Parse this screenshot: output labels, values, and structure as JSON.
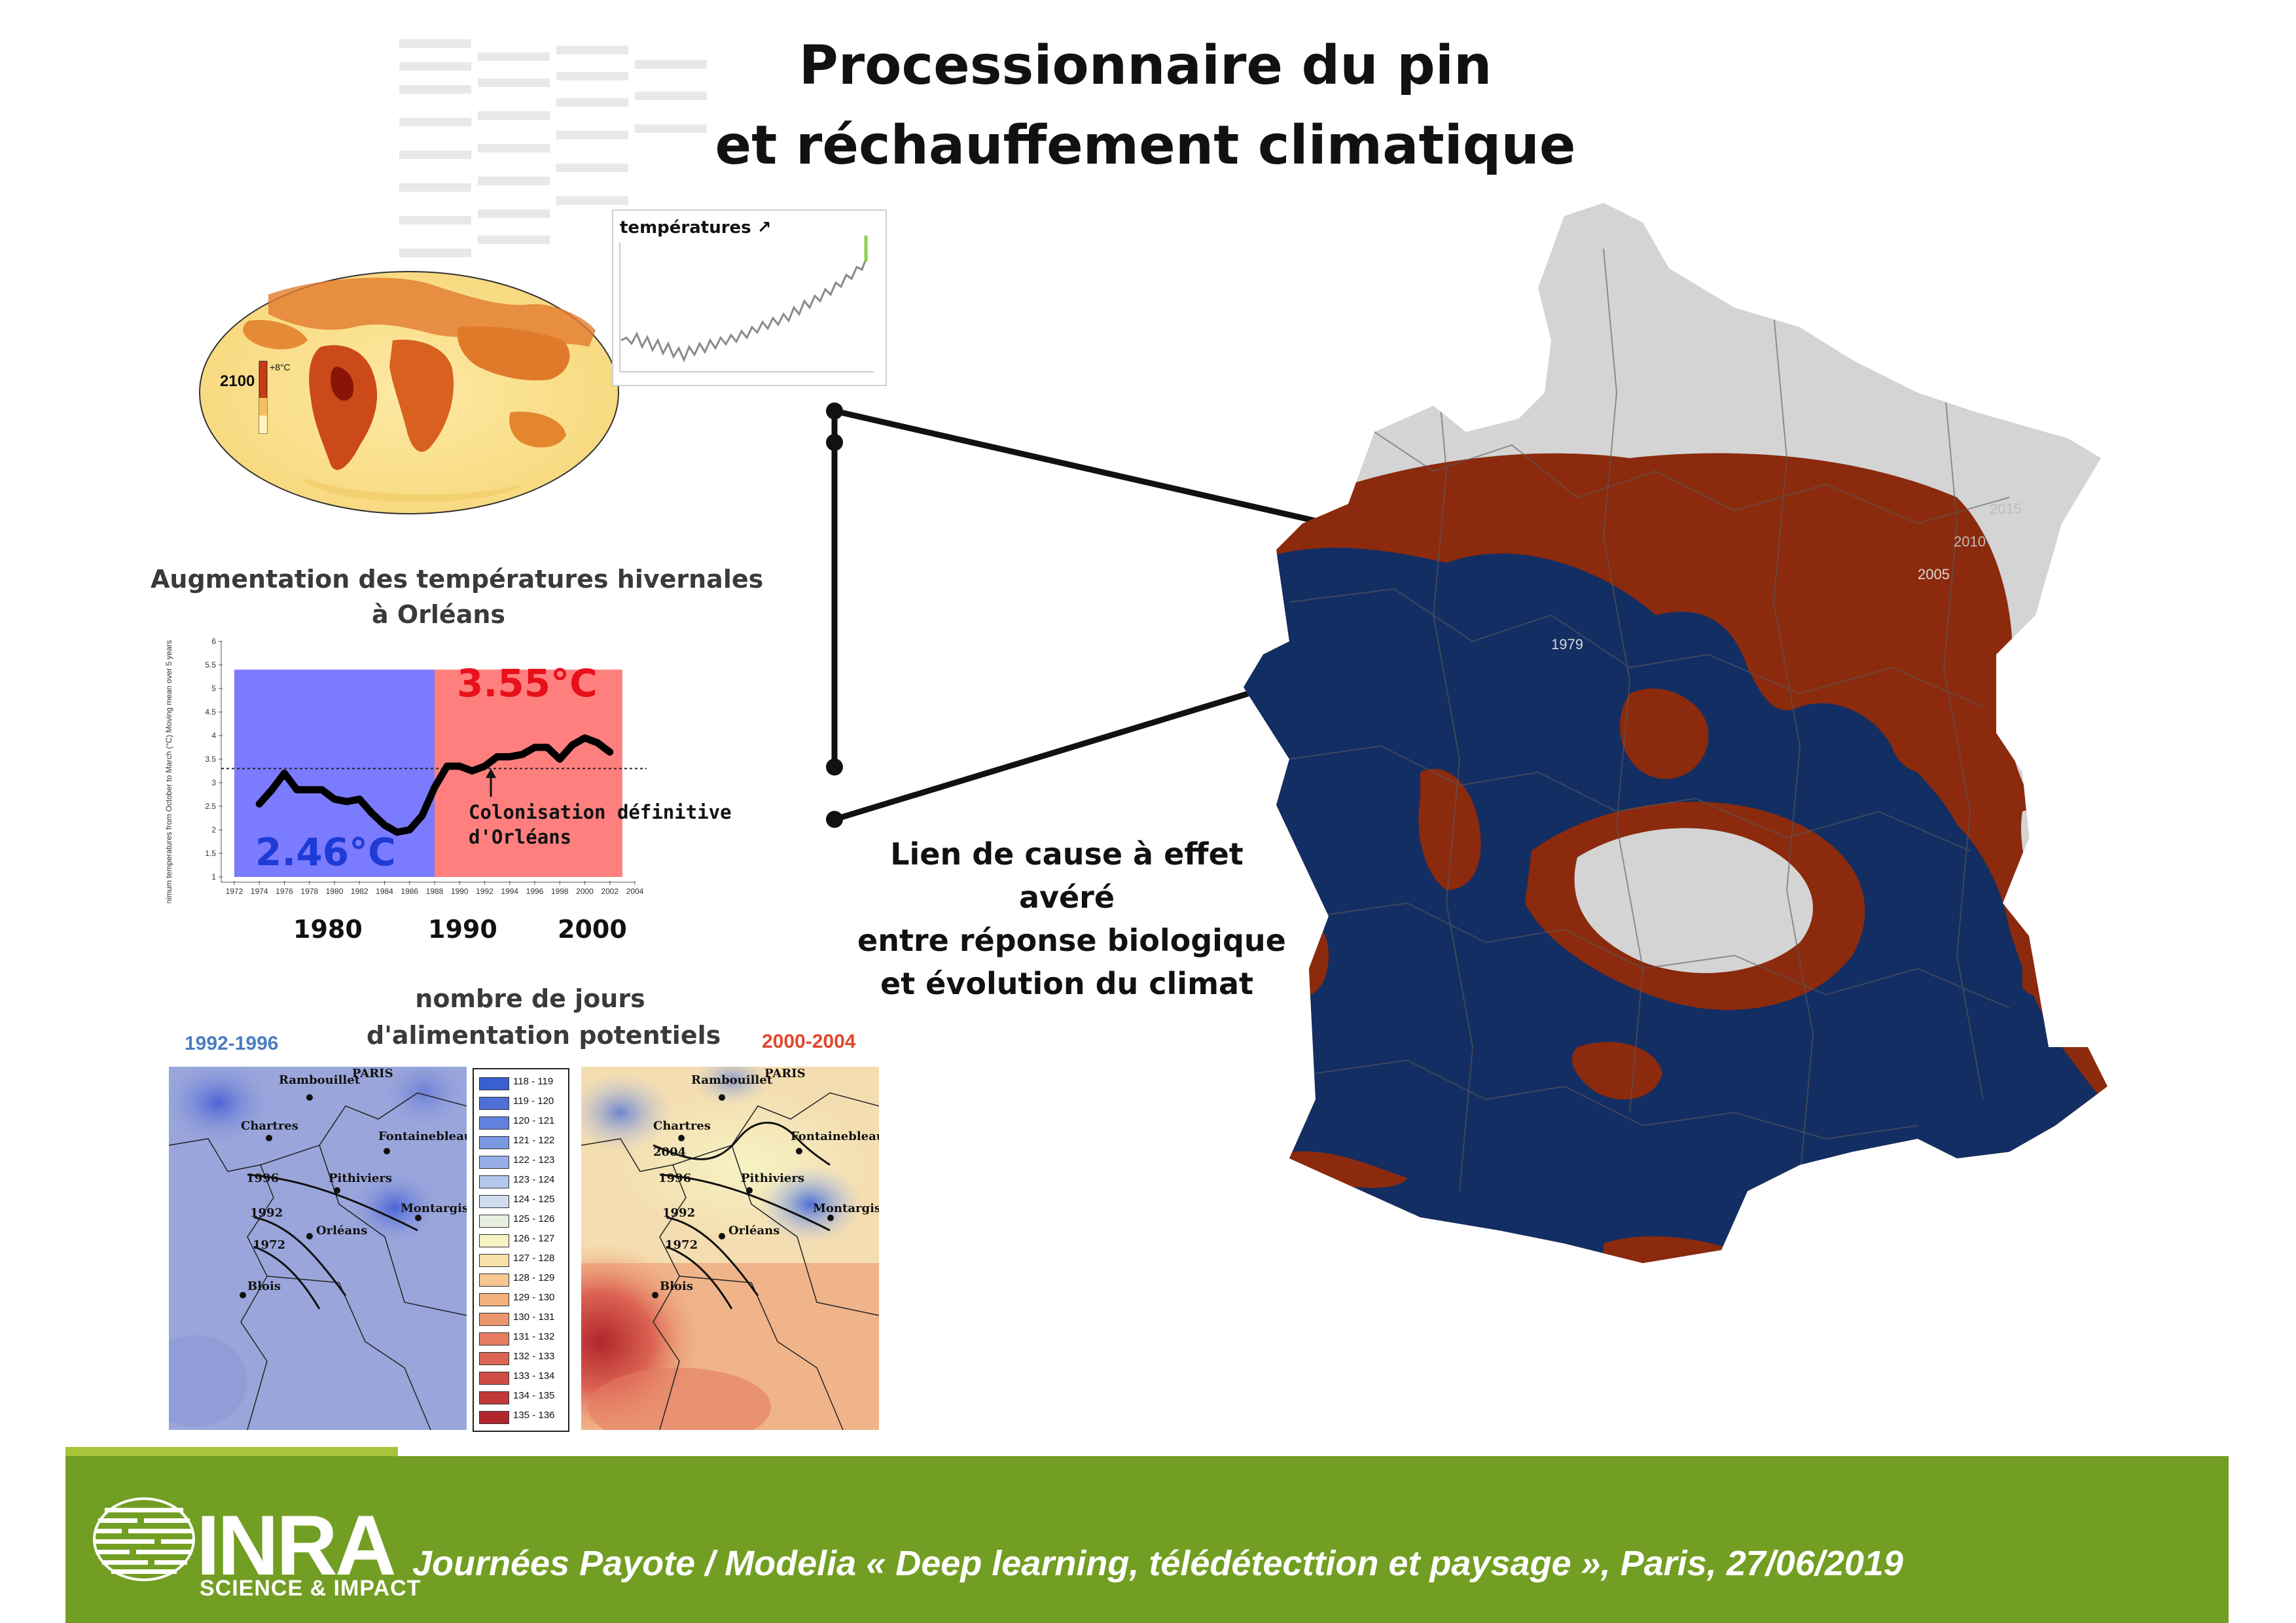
{
  "title": {
    "line1": "Processionnaire du pin",
    "line2": "et réchauffement climatique"
  },
  "globe": {
    "year": "2100",
    "scale_top": "+8°C"
  },
  "temp_inset": {
    "label": "températures ↗"
  },
  "orleans_chart": {
    "title_line1": "Augmentation des températures hivernales",
    "title_line2": "à Orléans",
    "ylabel": "Minimum temperatures from October to March (°C) Moving mean over 5 years",
    "period1_value": "2.46°C",
    "period2_value": "3.55°C",
    "annotation_line1": "Colonisation définitive",
    "annotation_line2": "d'Orléans",
    "decade_labels": [
      "1980",
      "1990",
      "2000"
    ],
    "colors": {
      "period1": "#7b7bff",
      "period2": "#ff7f7f",
      "value1": "#1f3bd6",
      "value2": "#e8101a"
    }
  },
  "chart_data": {
    "type": "line",
    "title": "Augmentation des températures hivernales à Orléans",
    "xlabel": "",
    "ylabel": "Minimum temperatures from October to March (°C) Moving mean over 5 years",
    "xlim": [
      1972,
      2004
    ],
    "ylim": [
      1,
      6
    ],
    "x_ticks": [
      1972,
      1974,
      1976,
      1978,
      1980,
      1982,
      1984,
      1986,
      1988,
      1990,
      1992,
      1994,
      1996,
      1998,
      2000,
      2002,
      2004
    ],
    "y_ticks": [
      1,
      1.5,
      2,
      2.5,
      3,
      3.5,
      4,
      4.5,
      5,
      5.5,
      6
    ],
    "reference_line": 3.3,
    "periods": [
      {
        "from": 1972,
        "to": 1988,
        "mean": "2.46°C"
      },
      {
        "from": 1988,
        "to": 2003,
        "mean": "3.55°C"
      }
    ],
    "series": [
      {
        "x": [
          1974,
          1975,
          1976,
          1977,
          1978,
          1979,
          1980,
          1981,
          1982,
          1983,
          1984,
          1985,
          1986,
          1987,
          1988,
          1989,
          1990,
          1991,
          1992,
          1993,
          1994,
          1995,
          1996,
          1997,
          1998,
          1999,
          2000,
          2001,
          2002
        ],
        "values": [
          2.55,
          2.85,
          3.2,
          2.85,
          2.85,
          2.85,
          2.65,
          2.6,
          2.65,
          2.35,
          2.1,
          1.95,
          2.0,
          2.3,
          2.9,
          3.35,
          3.35,
          3.25,
          3.35,
          3.55,
          3.55,
          3.6,
          3.75,
          3.75,
          3.5,
          3.8,
          3.95,
          3.85,
          3.65
        ]
      }
    ]
  },
  "maps": {
    "title_line1": "nombre de jours",
    "title_line2": "d'alimentation potentiels",
    "left_period": "1992-1996",
    "right_period": "2000-2004",
    "left_period_color": "#4a7ec0",
    "right_period_color": "#e0492d",
    "towns": [
      "Rambouillet",
      "PARIS",
      "Chartres",
      "Fontainebleau",
      "Pithiviers",
      "Montargis",
      "Orléans",
      "Blois"
    ],
    "front_years_left": [
      "1996",
      "1992",
      "1972"
    ],
    "front_years_right": [
      "2004",
      "1996",
      "1992",
      "1972"
    ],
    "legend": [
      {
        "range": "118 - 119",
        "color": "#3a5fd0"
      },
      {
        "range": "119 - 120",
        "color": "#4d6fd6"
      },
      {
        "range": "120 - 121",
        "color": "#6182dc"
      },
      {
        "range": "121 - 122",
        "color": "#7b97e2"
      },
      {
        "range": "122 - 123",
        "color": "#97afe7"
      },
      {
        "range": "123 - 124",
        "color": "#b3c6ec"
      },
      {
        "range": "124 - 125",
        "color": "#cfdcee"
      },
      {
        "range": "125 - 126",
        "color": "#e8eee0"
      },
      {
        "range": "126 - 127",
        "color": "#f6f2c4"
      },
      {
        "range": "127 - 128",
        "color": "#f8e0a8"
      },
      {
        "range": "128 - 129",
        "color": "#f6c890"
      },
      {
        "range": "129 - 130",
        "color": "#f2b07c"
      },
      {
        "range": "130 - 131",
        "color": "#ec9670"
      },
      {
        "range": "131 - 132",
        "color": "#e57c62"
      },
      {
        "range": "132 - 133",
        "color": "#dc6454"
      },
      {
        "range": "133 - 134",
        "color": "#d04c46"
      },
      {
        "range": "134 - 135",
        "color": "#c23838"
      },
      {
        "range": "135 - 136",
        "color": "#b1262c"
      }
    ]
  },
  "france_map": {
    "year_labels": [
      "2015",
      "2010",
      "2005",
      "1979"
    ],
    "colors": {
      "background": "#d4d4d4",
      "present": "#8c2a0d",
      "suitable": "#132e63"
    }
  },
  "caption": {
    "line1": "Lien de cause à effet",
    "line2": "avéré",
    "line3": "entre réponse biologique",
    "line4": "et évolution du climat"
  },
  "footer": {
    "logo_word": "INRA",
    "logo_sub": "SCIENCE & IMPACT",
    "text": "Journées Payote / Modelia « Deep learning, télédétecttion et paysage », Paris, 27/06/2019",
    "bar_color": "#729e23"
  }
}
